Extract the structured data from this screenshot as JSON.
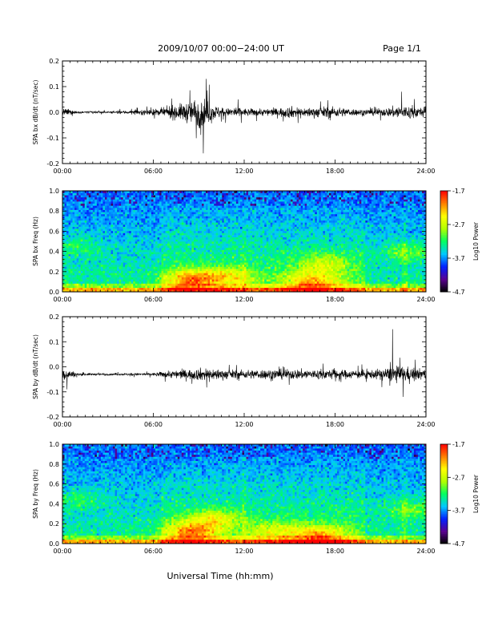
{
  "header": {
    "title": "2009/10/07  00:00−24:00 UT",
    "page": "Page 1/1"
  },
  "xlabel": "Universal Time (hh:mm)",
  "chart_data": [
    {
      "type": "line",
      "ylabel": "SPA bx dB/dt (nT/sec)",
      "x_ticks": [
        "00:00",
        "06:00",
        "12:00",
        "18:00",
        "24:00"
      ],
      "xlim": [
        0,
        24
      ],
      "ylim": [
        -0.2,
        0.2
      ],
      "y_ticks": [
        "-0.2",
        "-0.1",
        "0.0",
        "0.1",
        "0.2"
      ],
      "envelope": [
        {
          "t": 0.0,
          "amp": 0.025
        },
        {
          "t": 0.5,
          "amp": 0.02
        },
        {
          "t": 1.0,
          "amp": 0.008
        },
        {
          "t": 3.0,
          "amp": 0.006
        },
        {
          "t": 5.0,
          "amp": 0.015
        },
        {
          "t": 6.5,
          "amp": 0.025
        },
        {
          "t": 7.0,
          "amp": 0.04
        },
        {
          "t": 8.0,
          "amp": 0.06
        },
        {
          "t": 8.7,
          "amp": 0.09
        },
        {
          "t": 9.3,
          "amp": 0.12
        },
        {
          "t": 10.0,
          "amp": 0.05
        },
        {
          "t": 11.0,
          "amp": 0.025
        },
        {
          "t": 11.5,
          "amp": 0.045
        },
        {
          "t": 12.0,
          "amp": 0.025
        },
        {
          "t": 14.0,
          "amp": 0.025
        },
        {
          "t": 15.0,
          "amp": 0.04
        },
        {
          "t": 16.0,
          "amp": 0.03
        },
        {
          "t": 17.5,
          "amp": 0.04
        },
        {
          "t": 19.0,
          "amp": 0.025
        },
        {
          "t": 20.0,
          "amp": 0.02
        },
        {
          "t": 21.5,
          "amp": 0.03
        },
        {
          "t": 22.3,
          "amp": 0.05
        },
        {
          "t": 23.0,
          "amp": 0.045
        },
        {
          "t": 24.0,
          "amp": 0.03
        }
      ],
      "offset": 0.0,
      "spikes": [
        {
          "t": 9.5,
          "y": 0.13
        },
        {
          "t": 9.3,
          "y": -0.16
        },
        {
          "t": 22.4,
          "y": 0.08
        }
      ]
    },
    {
      "type": "heatmap",
      "ylabel": "SPA bx Freq (Hz)",
      "x_ticks": [
        "00:00",
        "06:00",
        "12:00",
        "18:00",
        "24:00"
      ],
      "xlim": [
        0,
        24
      ],
      "ylim": [
        0.0,
        1.0
      ],
      "y_ticks": [
        "0.0",
        "0.2",
        "0.4",
        "0.6",
        "0.8",
        "1.0"
      ],
      "colorbar": {
        "label": "Log10 Power",
        "ticks": [
          "-1.7",
          "-2.7",
          "-3.7",
          "-4.7"
        ],
        "range": [
          -4.7,
          -1.7
        ],
        "colors": [
          "#000000",
          "#5a0090",
          "#0020ff",
          "#00c8ff",
          "#00ff60",
          "#b0ff00",
          "#ffff00",
          "#ff8000",
          "#ff0000"
        ]
      },
      "hotspots": [
        {
          "t": 8.5,
          "f": 0.12,
          "strength": 1.6
        },
        {
          "t": 11.0,
          "f": 0.15,
          "strength": 1.0
        },
        {
          "t": 16.5,
          "f": 0.1,
          "strength": 1.4
        },
        {
          "t": 17.3,
          "f": 0.28,
          "strength": 0.9
        },
        {
          "t": 1.0,
          "f": 0.45,
          "strength": 0.5
        },
        {
          "t": 22.8,
          "f": 0.4,
          "strength": 0.7
        }
      ]
    },
    {
      "type": "line",
      "ylabel": "SPA by dB/dt (nT/sec)",
      "x_ticks": [
        "00:00",
        "06:00",
        "12:00",
        "18:00",
        "24:00"
      ],
      "xlim": [
        0,
        24
      ],
      "ylim": [
        -0.2,
        0.2
      ],
      "y_ticks": [
        "-0.2",
        "-0.1",
        "0.0",
        "0.1",
        "0.2"
      ],
      "envelope": [
        {
          "t": 0.0,
          "amp": 0.04
        },
        {
          "t": 0.5,
          "amp": 0.03
        },
        {
          "t": 1.0,
          "amp": 0.008
        },
        {
          "t": 3.0,
          "amp": 0.006
        },
        {
          "t": 6.0,
          "amp": 0.01
        },
        {
          "t": 7.0,
          "amp": 0.025
        },
        {
          "t": 8.5,
          "amp": 0.035
        },
        {
          "t": 9.3,
          "amp": 0.045
        },
        {
          "t": 10.5,
          "amp": 0.035
        },
        {
          "t": 12.0,
          "amp": 0.03
        },
        {
          "t": 13.5,
          "amp": 0.035
        },
        {
          "t": 15.5,
          "amp": 0.035
        },
        {
          "t": 17.0,
          "amp": 0.035
        },
        {
          "t": 19.0,
          "amp": 0.03
        },
        {
          "t": 20.5,
          "amp": 0.03
        },
        {
          "t": 21.7,
          "amp": 0.05
        },
        {
          "t": 22.3,
          "amp": 0.06
        },
        {
          "t": 23.0,
          "amp": 0.045
        },
        {
          "t": 24.0,
          "amp": 0.035
        }
      ],
      "offset": -0.03,
      "spikes": [
        {
          "t": 21.8,
          "y": 0.15
        },
        {
          "t": 22.5,
          "y": -0.12
        },
        {
          "t": 0.3,
          "y": -0.09
        }
      ]
    },
    {
      "type": "heatmap",
      "ylabel": "SPA by Freq (Hz)",
      "x_ticks": [
        "00:00",
        "06:00",
        "12:00",
        "18:00",
        "24:00"
      ],
      "xlim": [
        0,
        24
      ],
      "ylim": [
        0.0,
        1.0
      ],
      "y_ticks": [
        "0.0",
        "0.2",
        "0.4",
        "0.6",
        "0.8",
        "1.0"
      ],
      "colorbar": {
        "label": "Log10 Power",
        "ticks": [
          "-1.7",
          "-2.7",
          "-3.7",
          "-4.7"
        ],
        "range": [
          -4.7,
          -1.7
        ],
        "colors": [
          "#000000",
          "#5a0090",
          "#0020ff",
          "#00c8ff",
          "#00ff60",
          "#b0ff00",
          "#ffff00",
          "#ff8000",
          "#ff0000"
        ]
      },
      "hotspots": [
        {
          "t": 8.5,
          "f": 0.12,
          "strength": 1.6
        },
        {
          "t": 10.0,
          "f": 0.25,
          "strength": 1.0
        },
        {
          "t": 17.0,
          "f": 0.08,
          "strength": 1.4
        },
        {
          "t": 14.0,
          "f": 0.12,
          "strength": 0.8
        },
        {
          "t": 1.0,
          "f": 0.45,
          "strength": 0.5
        },
        {
          "t": 23.0,
          "f": 0.35,
          "strength": 0.7
        }
      ]
    }
  ]
}
